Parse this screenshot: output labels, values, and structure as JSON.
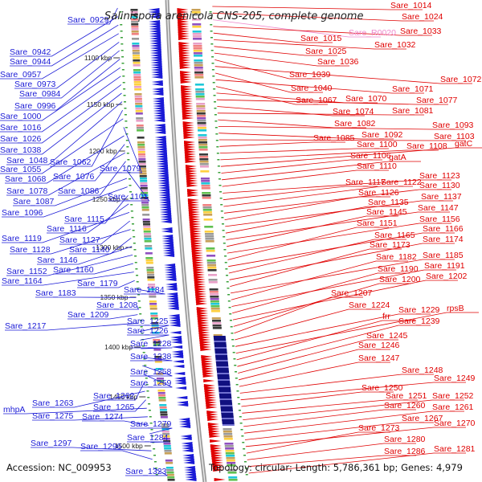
{
  "title": "Salinispora arenicola CNS-205, complete genome",
  "footer": {
    "accession": "Accession: NC_009953",
    "stats": "Topology: circular; Length: 5,786,361 bp; Genes: 4,979"
  },
  "colors": {
    "left": "#1a1ad6",
    "right": "#e00000",
    "rna": "#ee88cc"
  },
  "ticks": [
    "1100 kbp",
    "1150 kbp",
    "1200 kbp",
    "1250 kbp",
    "1300 kbp",
    "1350 kbp",
    "1400 kbp",
    "1450 kbp",
    "1500 kbp"
  ],
  "left_labels": [
    "Sare_0929",
    "Sare_0942",
    "Sare_0944",
    "Sare_0957",
    "Sare_0973",
    "Sare_0984",
    "Sare_0996",
    "Sare_1000",
    "Sare_1016",
    "Sare_1026",
    "Sare_1038",
    "Sare_1048",
    "Sare_1062",
    "Sare_1055",
    "Sare_1079",
    "Sare_1068",
    "Sare_1076",
    "Sare_1078",
    "Sare_1086",
    "Sare_1101",
    "Sare_1087",
    "Sare_1096",
    "Sare_1115",
    "Sare_1116",
    "Sare_1119",
    "Sare_1127",
    "Sare_1128",
    "Sare_1140",
    "Sare_1146",
    "Sare_1152",
    "Sare_1160",
    "Sare_1164",
    "Sare_1179",
    "Sare_1184",
    "Sare_1183",
    "Sare_1208",
    "Sare_1209",
    "Sare_1217",
    "Sare_1225",
    "Sare_1226",
    "Sare_1228",
    "Sare_1238",
    "Sare_1258",
    "Sare_1259",
    "Sare_1262",
    "Sare_1263",
    "Sare_1265",
    "mhpA",
    "Sare_1275",
    "Sare_1274",
    "Sare_1279",
    "Sare_1284",
    "Sare_1297",
    "Sare_1296",
    "Sare_1323"
  ],
  "right_labels": [
    "Sare_1014",
    "Sare_1024",
    "Sare_R0020",
    "Sare_1033",
    "Sare_1015",
    "Sare_1032",
    "Sare_1025",
    "Sare_1036",
    "Sare_1039",
    "Sare_1072",
    "Sare_1040",
    "Sare_1071",
    "Sare_1067",
    "Sare_1070",
    "Sare_1077",
    "Sare_1074",
    "Sare_1081",
    "Sare_1082",
    "Sare_1093",
    "Sare_1092",
    "Sare_1103",
    "Sare_1085",
    "Sare_1100",
    "Sare_1108",
    "gatC",
    "Sare_1106",
    "gatA",
    "Sare_1110",
    "Sare_1123",
    "Sare_1117",
    "Sare_1122",
    "Sare_1130",
    "Sare_1126",
    "Sare_1137",
    "Sare_1135",
    "Sare_1147",
    "Sare_1145",
    "Sare_1156",
    "Sare_1151",
    "Sare_1166",
    "Sare_1165",
    "Sare_1174",
    "Sare_1173",
    "Sare_1185",
    "Sare_1182",
    "Sare_1191",
    "Sare_1190",
    "Sare_1202",
    "Sare_1200",
    "Sare_1207",
    "Sare_1224",
    "Sare_1229",
    "rpsB",
    "frr",
    "Sare_1239",
    "Sare_1245",
    "Sare_1246",
    "Sare_1247",
    "Sare_1248",
    "Sare_1249",
    "Sare_1250",
    "Sare_1251",
    "Sare_1252",
    "Sare_1260",
    "Sare_1261",
    "Sare_1267",
    "Sare_1270",
    "Sare_1273",
    "Sare_1280",
    "Sare_1286",
    "Sare_1281"
  ]
}
